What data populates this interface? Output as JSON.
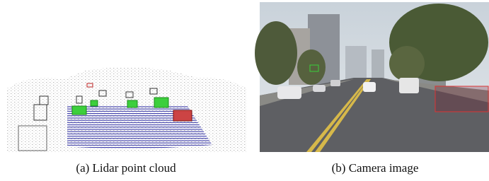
{
  "figure": {
    "subfigures": [
      {
        "caption": "(a) Lidar point cloud"
      },
      {
        "caption": "(b) Camera image"
      }
    ]
  }
}
